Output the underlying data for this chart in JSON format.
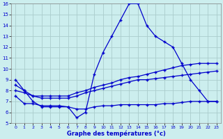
{
  "title": "Graphe des températures (°c)",
  "bg_color": "#cceeee",
  "grid_color": "#aacccc",
  "line_color": "#0000cc",
  "xlim": [
    -0.5,
    23.5
  ],
  "ylim": [
    5,
    16
  ],
  "xticks": [
    0,
    1,
    2,
    3,
    4,
    5,
    6,
    7,
    8,
    9,
    10,
    11,
    12,
    13,
    14,
    15,
    16,
    17,
    18,
    19,
    20,
    21,
    22,
    23
  ],
  "yticks": [
    5,
    6,
    7,
    8,
    9,
    10,
    11,
    12,
    13,
    14,
    15,
    16
  ],
  "line1_x": [
    0,
    1,
    2,
    3,
    4,
    5,
    6,
    7,
    8,
    9,
    10,
    11,
    12,
    13,
    14,
    15,
    16,
    17,
    18,
    19,
    20,
    21,
    22,
    23
  ],
  "line1_y": [
    9.0,
    8.0,
    7.0,
    6.5,
    6.5,
    6.5,
    6.5,
    5.5,
    6.0,
    9.5,
    11.5,
    13.0,
    14.5,
    16.0,
    16.0,
    14.0,
    13.0,
    12.5,
    12.0,
    10.5,
    9.0,
    8.0,
    7.0,
    7.0
  ],
  "line2_x": [
    0,
    1,
    2,
    3,
    4,
    5,
    6,
    7,
    8,
    9,
    10,
    11,
    12,
    13,
    14,
    15,
    16,
    17,
    18,
    19,
    20,
    21,
    22,
    23
  ],
  "line2_y": [
    8.5,
    8.0,
    7.5,
    7.5,
    7.5,
    7.5,
    7.5,
    7.8,
    8.0,
    8.3,
    8.5,
    8.7,
    9.0,
    9.2,
    9.3,
    9.5,
    9.7,
    9.9,
    10.1,
    10.3,
    10.4,
    10.5,
    10.5,
    10.5
  ],
  "line3_x": [
    0,
    1,
    2,
    3,
    4,
    5,
    6,
    7,
    8,
    9,
    10,
    11,
    12,
    13,
    14,
    15,
    16,
    17,
    18,
    19,
    20,
    21,
    22,
    23
  ],
  "line3_y": [
    8.0,
    7.8,
    7.5,
    7.3,
    7.3,
    7.3,
    7.3,
    7.5,
    7.8,
    8.0,
    8.2,
    8.4,
    8.6,
    8.8,
    9.0,
    9.0,
    9.1,
    9.2,
    9.3,
    9.4,
    9.5,
    9.6,
    9.7,
    9.8
  ],
  "line4_x": [
    0,
    1,
    2,
    3,
    4,
    5,
    6,
    7,
    8,
    9,
    10,
    11,
    12,
    13,
    14,
    15,
    16,
    17,
    18,
    19,
    20,
    21,
    22,
    23
  ],
  "line4_y": [
    7.5,
    6.8,
    6.8,
    6.6,
    6.6,
    6.6,
    6.5,
    6.3,
    6.3,
    6.5,
    6.6,
    6.6,
    6.7,
    6.7,
    6.7,
    6.7,
    6.7,
    6.8,
    6.8,
    6.9,
    7.0,
    7.0,
    7.0,
    7.0
  ]
}
